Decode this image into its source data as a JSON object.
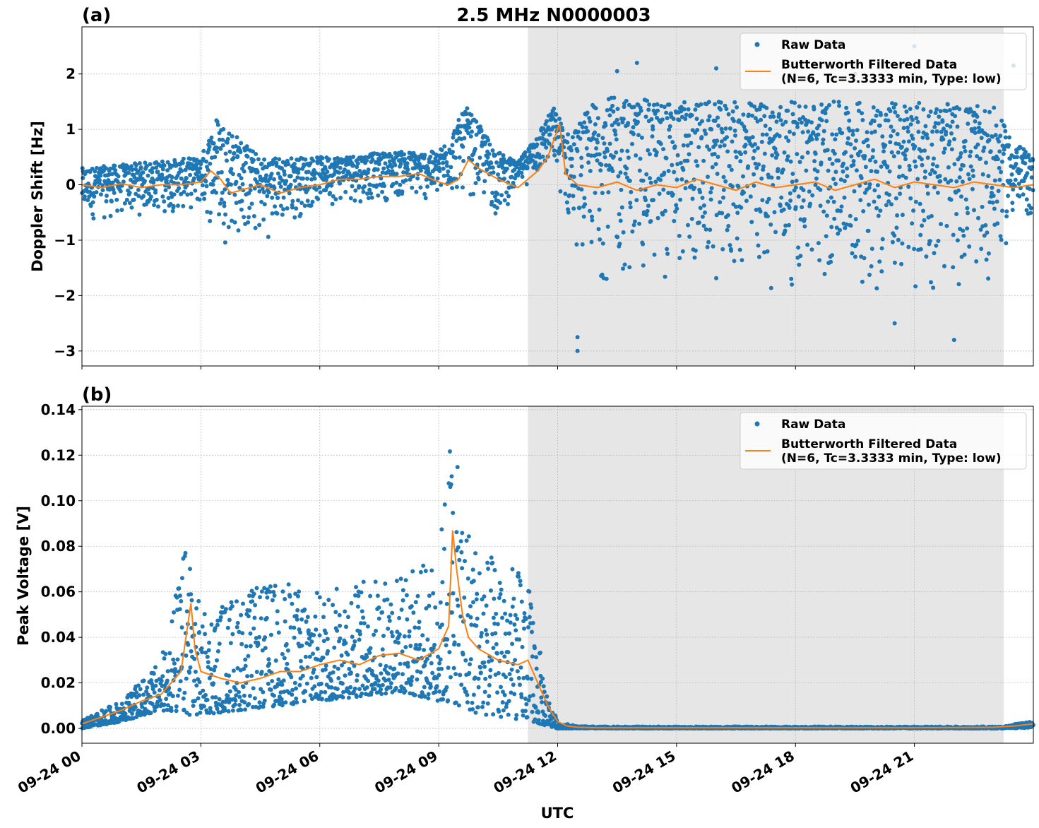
{
  "figure": {
    "title": "2.5 MHz N0000003",
    "xlabel": "UTC"
  },
  "colors": {
    "raw": "#1f77b4",
    "filtered": "#ff7f0e",
    "shade": "#e6e6e6",
    "grid": "#b0b0b0"
  },
  "legend": {
    "raw_label": "Raw Data",
    "filtered_label_line1": "Butterworth Filtered Data",
    "filtered_label_line2": "(N=6, Tc=3.3333 min, Type: low)",
    "placement": "upper right"
  },
  "chart_data": [
    {
      "panel": "(a)",
      "type": "scatter",
      "ylabel": "Doppler Shift [Hz]",
      "ylim": [
        -3.27,
        2.85
      ],
      "yticks": [
        2,
        1,
        0,
        -1,
        -2,
        -3
      ],
      "ytick_labels": [
        "2",
        "1",
        "0",
        "−1",
        "−2",
        "−3"
      ],
      "x_unit": "hours since 09-24 00 UTC",
      "xlim": [
        0,
        24
      ],
      "xticks": [
        0,
        3,
        6,
        9,
        12,
        15,
        18,
        21
      ],
      "xtick_labels": [
        "09-24 00",
        "09-24 03",
        "09-24 06",
        "09-24 09",
        "09-24 12",
        "09-24 15",
        "09-24 18",
        "09-24 21"
      ],
      "grid": true,
      "shaded_span": [
        11.25,
        23.25
      ],
      "series": [
        {
          "name": "Butterworth Filtered Data",
          "kind": "line",
          "x": [
            0,
            0.5,
            1,
            1.5,
            2,
            2.5,
            3,
            3.25,
            3.5,
            3.75,
            4,
            4.5,
            5,
            5.5,
            6,
            6.5,
            7,
            7.5,
            8,
            8.5,
            9,
            9.25,
            9.5,
            9.75,
            10,
            10.5,
            11,
            11.25,
            11.5,
            11.75,
            11.9,
            12.05,
            12.2,
            12.5,
            13,
            13.5,
            14,
            14.5,
            15,
            15.5,
            16,
            16.5,
            17,
            17.5,
            18,
            18.5,
            19,
            19.5,
            20,
            20.5,
            21,
            21.5,
            22,
            22.5,
            23,
            23.5,
            24
          ],
          "y": [
            0.0,
            -0.05,
            0.02,
            -0.05,
            0.0,
            0.0,
            0.05,
            0.25,
            0.1,
            -0.15,
            -0.1,
            0.0,
            -0.15,
            -0.05,
            0.0,
            0.1,
            0.1,
            0.15,
            0.15,
            0.2,
            0.05,
            0.0,
            0.1,
            0.45,
            0.3,
            0.1,
            -0.05,
            0.1,
            0.25,
            0.5,
            0.8,
            1.1,
            0.2,
            0.0,
            -0.05,
            0.05,
            -0.1,
            0.0,
            -0.05,
            0.1,
            0.0,
            -0.1,
            0.05,
            -0.05,
            0.0,
            0.05,
            -0.1,
            0.0,
            0.1,
            -0.05,
            0.05,
            0.0,
            -0.05,
            0.05,
            0.0,
            -0.05,
            0.0
          ]
        },
        {
          "name": "Raw Data",
          "kind": "scatter",
          "envelope_x": [
            0,
            3,
            3.4,
            4.5,
            6,
            8,
            9,
            9.7,
            10.5,
            11,
            11.9,
            12.3,
            13,
            15,
            18,
            21,
            23,
            23.5,
            24
          ],
          "envelope_upper": [
            0.3,
            0.5,
            1.25,
            0.5,
            0.5,
            0.6,
            0.6,
            1.4,
            0.6,
            0.4,
            1.4,
            0.9,
            1.6,
            1.5,
            1.5,
            1.5,
            1.4,
            0.8,
            0.5
          ],
          "envelope_lower": [
            -0.7,
            -0.5,
            -1.1,
            -1.1,
            -0.4,
            -0.3,
            -0.4,
            -0.2,
            -0.7,
            -0.1,
            0.2,
            -1.0,
            -1.9,
            -1.9,
            -2.0,
            -2.1,
            -1.9,
            -0.8,
            -0.7
          ],
          "outliers": [
            [
              12.5,
              -3.0
            ],
            [
              12.5,
              -2.75
            ],
            [
              13.5,
              2.05
            ],
            [
              14,
              2.2
            ],
            [
              16,
              2.1
            ],
            [
              19.5,
              2.0
            ],
            [
              20.5,
              -2.5
            ],
            [
              21,
              2.5
            ],
            [
              22,
              -2.8
            ],
            [
              23.5,
              2.15
            ]
          ]
        }
      ]
    },
    {
      "panel": "(b)",
      "type": "scatter",
      "ylabel": "Peak Voltage [V]",
      "xlabel": "UTC",
      "ylim": [
        -0.0065,
        0.1415
      ],
      "yticks": [
        0,
        0.02,
        0.04,
        0.06,
        0.08,
        0.1,
        0.12,
        0.14
      ],
      "ytick_labels": [
        "0.00",
        "0.02",
        "0.04",
        "0.06",
        "0.08",
        "0.10",
        "0.12",
        "0.14"
      ],
      "x_unit": "hours since 09-24 00 UTC",
      "xlim": [
        0,
        24
      ],
      "xticks": [
        0,
        3,
        6,
        9,
        12,
        15,
        18,
        21
      ],
      "xtick_labels": [
        "09-24 00",
        "09-24 03",
        "09-24 06",
        "09-24 09",
        "09-24 12",
        "09-24 15",
        "09-24 18",
        "09-24 21"
      ],
      "grid": true,
      "shaded_span": [
        11.25,
        23.25
      ],
      "series": [
        {
          "name": "Butterworth Filtered Data",
          "kind": "line",
          "x": [
            0,
            0.5,
            1,
            1.5,
            2,
            2.25,
            2.5,
            2.75,
            2.85,
            3,
            3.5,
            4,
            4.5,
            5,
            5.5,
            6,
            6.5,
            7,
            7.5,
            8,
            8.5,
            9,
            9.25,
            9.35,
            9.45,
            9.6,
            9.75,
            10,
            10.5,
            11,
            11.25,
            11.5,
            11.75,
            12,
            12.25,
            12.5,
            13,
            15,
            18,
            21,
            23,
            23.5,
            24
          ],
          "y": [
            0.002,
            0.005,
            0.008,
            0.012,
            0.015,
            0.02,
            0.025,
            0.055,
            0.035,
            0.025,
            0.022,
            0.02,
            0.022,
            0.025,
            0.025,
            0.028,
            0.03,
            0.028,
            0.032,
            0.033,
            0.03,
            0.035,
            0.045,
            0.087,
            0.07,
            0.05,
            0.04,
            0.035,
            0.03,
            0.028,
            0.03,
            0.02,
            0.01,
            0.003,
            0.001,
            0.0005,
            0.0003,
            0.0003,
            0.0003,
            0.0003,
            0.0005,
            0.001,
            0.002
          ]
        },
        {
          "name": "Raw Data",
          "kind": "scatter",
          "envelope_x": [
            0,
            1,
            2,
            2.7,
            3,
            4,
            5,
            6,
            7,
            8,
            9,
            9.3,
            9.6,
            10,
            11,
            11.25,
            11.5,
            11.75,
            12,
            12.5,
            13,
            23.25,
            23.5,
            24
          ],
          "envelope_upper": [
            0.004,
            0.012,
            0.03,
            0.088,
            0.05,
            0.06,
            0.065,
            0.06,
            0.065,
            0.068,
            0.075,
            0.135,
            0.1,
            0.08,
            0.07,
            0.065,
            0.04,
            0.015,
            0.003,
            0.001,
            0.0008,
            0.0008,
            0.002,
            0.003
          ],
          "envelope_lower": [
            0.0,
            0.003,
            0.008,
            0.006,
            0.006,
            0.008,
            0.01,
            0.012,
            0.014,
            0.016,
            0.012,
            0.01,
            0.01,
            0.006,
            0.004,
            0.004,
            0.002,
            0.001,
            0.0,
            0.0,
            0.0,
            0.0,
            0.0,
            0.0005
          ]
        }
      ]
    }
  ]
}
